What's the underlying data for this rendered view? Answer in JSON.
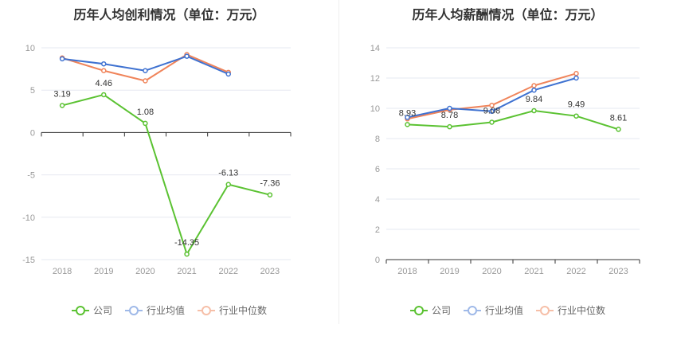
{
  "legend": {
    "company": "公司",
    "industry_avg": "行业均值",
    "industry_median": "行业中位数"
  },
  "colors": {
    "company": "#5bc232",
    "industry_avg": "#3f72d1",
    "industry_median": "#f0845a",
    "grid": "#e6e8f0",
    "axis": "#333333",
    "tick": "#999999"
  },
  "chart_data": [
    {
      "type": "line",
      "title": "历年人均创利情况（单位：万元）",
      "categories": [
        "2018",
        "2019",
        "2020",
        "2021",
        "2022",
        "2023"
      ],
      "ylim": [
        -15,
        10
      ],
      "yticks": [
        10,
        5,
        0,
        -5,
        -10,
        -15
      ],
      "grid": true,
      "legend_position": "bottom",
      "series": [
        {
          "name": "公司",
          "key": "company",
          "values": [
            3.19,
            4.46,
            1.08,
            -14.35,
            -6.13,
            -7.36
          ],
          "labels": [
            "3.19",
            "4.46",
            "1.08",
            "-14.35",
            "-6.13",
            "-7.36"
          ]
        },
        {
          "name": "行业均值",
          "key": "industry_avg",
          "values": [
            8.7,
            8.1,
            7.3,
            9.0,
            6.9,
            null
          ]
        },
        {
          "name": "行业中位数",
          "key": "industry_median",
          "values": [
            8.8,
            7.3,
            6.1,
            9.2,
            7.1,
            null
          ]
        }
      ]
    },
    {
      "type": "line",
      "title": "历年人均薪酬情况（单位：万元）",
      "categories": [
        "2018",
        "2019",
        "2020",
        "2021",
        "2022",
        "2023"
      ],
      "ylim": [
        0,
        14
      ],
      "yticks": [
        14,
        12,
        10,
        8,
        6,
        4,
        2,
        0
      ],
      "grid": true,
      "legend_position": "bottom",
      "series": [
        {
          "name": "公司",
          "key": "company",
          "values": [
            8.93,
            8.78,
            9.08,
            9.84,
            9.49,
            8.61
          ],
          "labels": [
            "8.93",
            "8.78",
            "9.08",
            "9.84",
            "9.49",
            "8.61"
          ]
        },
        {
          "name": "行业均值",
          "key": "industry_avg",
          "values": [
            9.4,
            10.0,
            9.8,
            11.2,
            12.0,
            null
          ]
        },
        {
          "name": "行业中位数",
          "key": "industry_median",
          "values": [
            9.3,
            9.9,
            10.2,
            11.5,
            12.3,
            null
          ]
        }
      ]
    }
  ]
}
